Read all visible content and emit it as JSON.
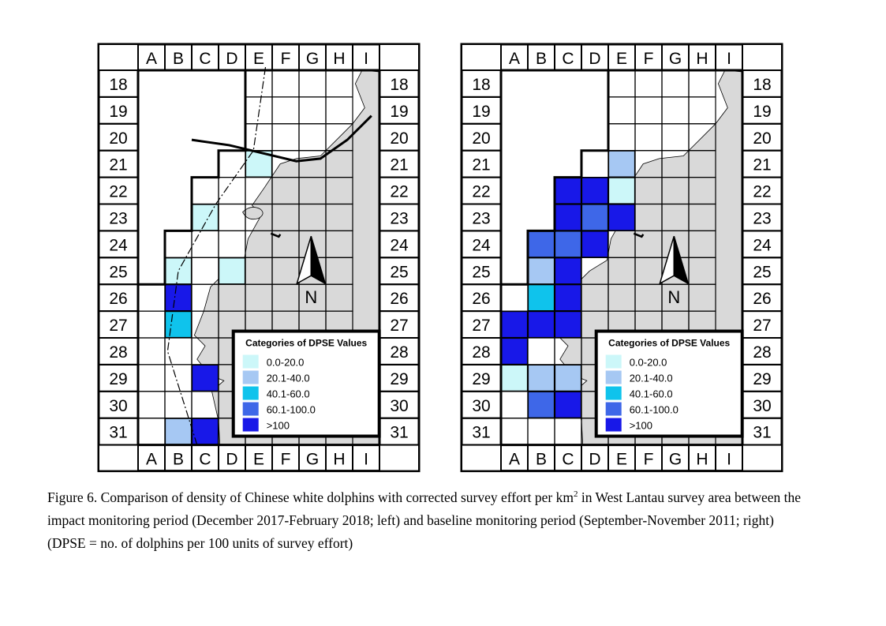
{
  "columns": [
    "A",
    "B",
    "C",
    "D",
    "E",
    "F",
    "G",
    "H",
    "I"
  ],
  "rows": [
    "18",
    "19",
    "20",
    "21",
    "22",
    "23",
    "24",
    "25",
    "26",
    "27",
    "28",
    "29",
    "30",
    "31"
  ],
  "colors": {
    "land": "#d9d9d9",
    "cat1": "#ccf7f9",
    "cat2": "#a6c8f3",
    "cat3": "#0fc3ec",
    "cat4": "#3e67e8",
    "cat5": "#1818e8"
  },
  "legend": {
    "title": "Categories of DPSE Values",
    "items": [
      {
        "label": "0.0-20.0",
        "cat": "cat1"
      },
      {
        "label": "20.1-40.0",
        "cat": "cat2"
      },
      {
        "label": "40.1-60.0",
        "cat": "cat3"
      },
      {
        "label": "60.1-100.0",
        "cat": "cat4"
      },
      {
        "label": ">100",
        "cat": "cat5"
      }
    ]
  },
  "north_label": "N",
  "north_icon": "north-arrow-icon",
  "maps": [
    {
      "id": "impact",
      "cells": [
        {
          "col": "E",
          "row": "21",
          "cat": "cat1"
        },
        {
          "col": "C",
          "row": "23",
          "cat": "cat1"
        },
        {
          "col": "B",
          "row": "25",
          "cat": "cat1"
        },
        {
          "col": "D",
          "row": "25",
          "cat": "cat1"
        },
        {
          "col": "B",
          "row": "26",
          "cat": "cat5"
        },
        {
          "col": "B",
          "row": "27",
          "cat": "cat3"
        },
        {
          "col": "C",
          "row": "29",
          "cat": "cat5"
        },
        {
          "col": "B",
          "row": "31",
          "cat": "cat2"
        },
        {
          "col": "C",
          "row": "31",
          "cat": "cat5"
        }
      ]
    },
    {
      "id": "baseline",
      "cells": [
        {
          "col": "E",
          "row": "21",
          "cat": "cat2"
        },
        {
          "col": "C",
          "row": "22",
          "cat": "cat5"
        },
        {
          "col": "D",
          "row": "22",
          "cat": "cat5"
        },
        {
          "col": "E",
          "row": "22",
          "cat": "cat1"
        },
        {
          "col": "C",
          "row": "23",
          "cat": "cat5"
        },
        {
          "col": "D",
          "row": "23",
          "cat": "cat4"
        },
        {
          "col": "E",
          "row": "23",
          "cat": "cat5"
        },
        {
          "col": "B",
          "row": "24",
          "cat": "cat4"
        },
        {
          "col": "C",
          "row": "24",
          "cat": "cat4"
        },
        {
          "col": "D",
          "row": "24",
          "cat": "cat5"
        },
        {
          "col": "B",
          "row": "25",
          "cat": "cat2"
        },
        {
          "col": "C",
          "row": "25",
          "cat": "cat5"
        },
        {
          "col": "B",
          "row": "26",
          "cat": "cat3"
        },
        {
          "col": "C",
          "row": "26",
          "cat": "cat5"
        },
        {
          "col": "A",
          "row": "27",
          "cat": "cat5"
        },
        {
          "col": "B",
          "row": "27",
          "cat": "cat5"
        },
        {
          "col": "C",
          "row": "27",
          "cat": "cat5"
        },
        {
          "col": "A",
          "row": "28",
          "cat": "cat5"
        },
        {
          "col": "A",
          "row": "29",
          "cat": "cat1"
        },
        {
          "col": "B",
          "row": "29",
          "cat": "cat2"
        },
        {
          "col": "C",
          "row": "29",
          "cat": "cat2"
        },
        {
          "col": "B",
          "row": "30",
          "cat": "cat4"
        },
        {
          "col": "C",
          "row": "30",
          "cat": "cat5"
        }
      ]
    }
  ],
  "caption": {
    "line1_a": "Figure 6.  Comparison of density of Chinese white dolphins with corrected survey effort per km",
    "line1_sup": "2",
    "line1_b": " in West Lantau survey area between the",
    "line2": "impact monitoring period (December 2017-February 2018; left) and baseline monitoring period (September-November 2011; right)",
    "line3": "(DPSE = no. of dolphins per 100 units of survey effort)"
  }
}
